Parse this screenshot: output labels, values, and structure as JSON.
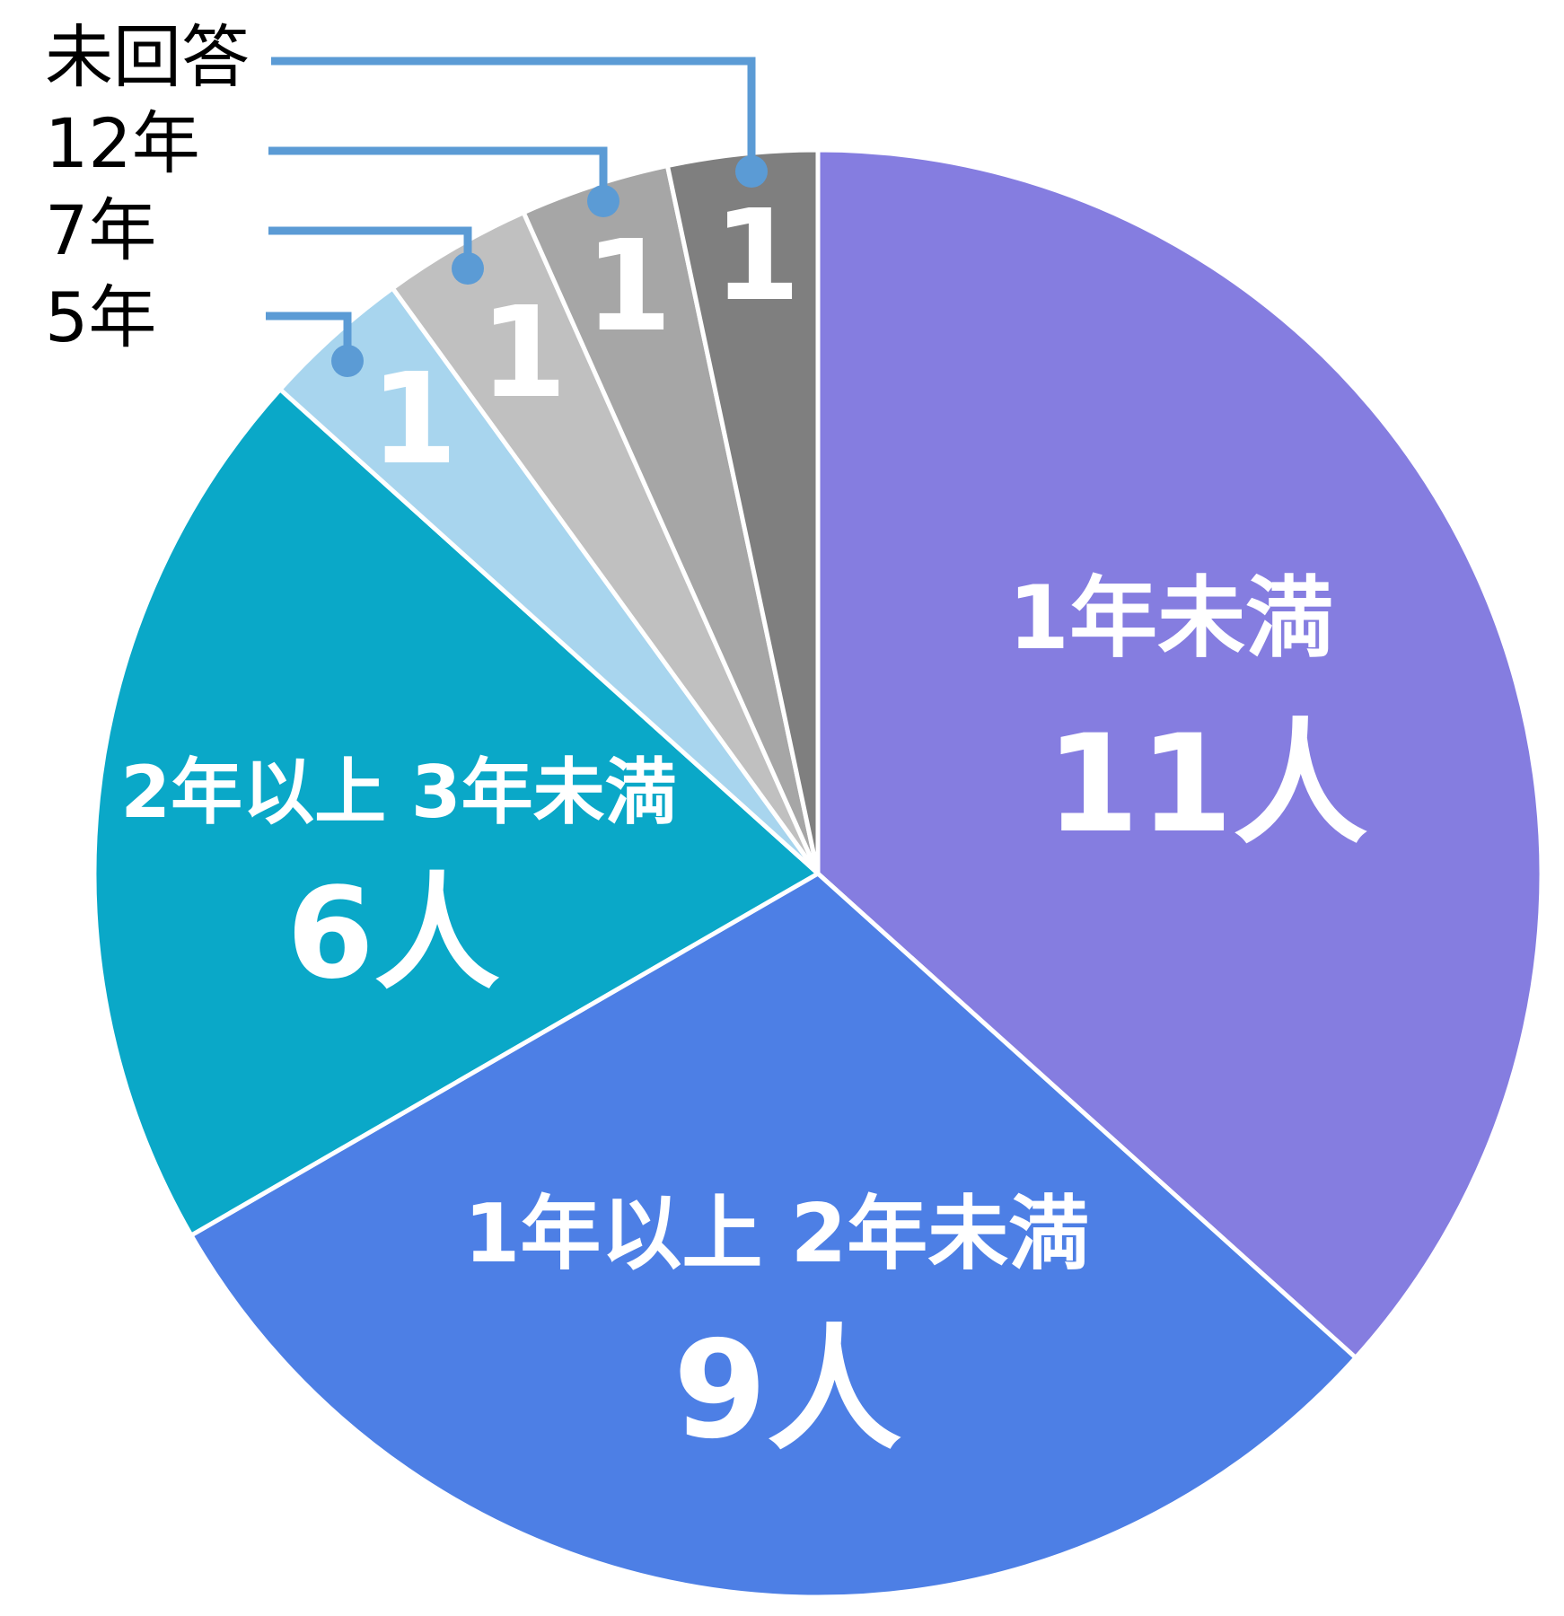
{
  "chart_data": {
    "type": "pie",
    "start": "top",
    "direction": "clockwise",
    "unit": "人",
    "slices": [
      {
        "label": "1年未満",
        "value": 11,
        "value_label": "11人",
        "color": "#857de0"
      },
      {
        "label": "1年以上 2年未満",
        "value": 9,
        "value_label": "9人",
        "color": "#4d7fe5"
      },
      {
        "label": "2年以上 3年未満",
        "value": 6,
        "value_label": "6人",
        "color": "#0aa8c8"
      },
      {
        "label": "5年",
        "value": 1,
        "value_label": "1",
        "color": "#a8d5ee"
      },
      {
        "label": "7年",
        "value": 1,
        "value_label": "1",
        "color": "#c0c0c0"
      },
      {
        "label": "12年",
        "value": 1,
        "value_label": "1",
        "color": "#a6a6a6"
      },
      {
        "label": "未回答",
        "value": 1,
        "value_label": "1",
        "color": "#7f7f7f"
      }
    ],
    "leader_line_color": "#5b9bd5"
  }
}
